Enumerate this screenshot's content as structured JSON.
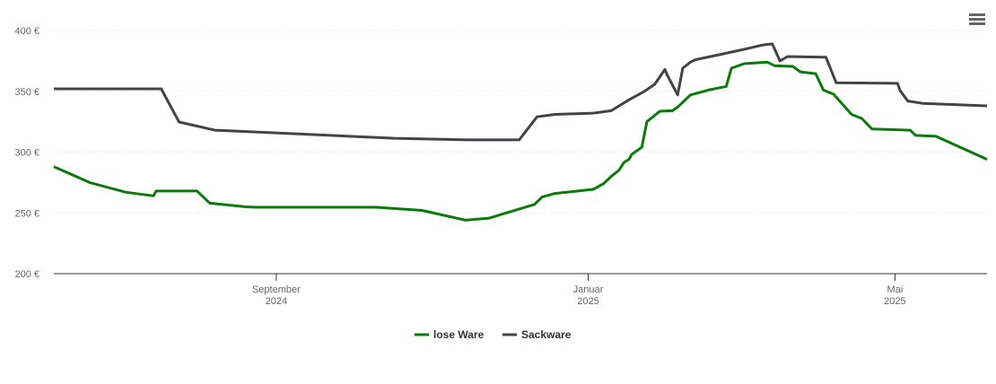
{
  "chart_data": {
    "type": "line",
    "xlim": [
      0,
      365
    ],
    "xticks": [
      {
        "value": 87,
        "label": "September 2024"
      },
      {
        "value": 209,
        "label": "Januar 2025"
      },
      {
        "value": 329,
        "label": "Mai 2025"
      }
    ],
    "ylim": [
      200,
      400
    ],
    "yticks": [
      {
        "value": 200,
        "label": "200 €"
      },
      {
        "value": 250,
        "label": "250 €"
      },
      {
        "value": 300,
        "label": "300 €"
      },
      {
        "value": 350,
        "label": "350 €"
      },
      {
        "value": 400,
        "label": "400 €"
      }
    ],
    "grid": true,
    "legend": "bottom",
    "series": [
      {
        "name": "lose Ware",
        "color": "#0b7a0b",
        "x": [
          0,
          14,
          28,
          39,
          40,
          56,
          61,
          75,
          79,
          126,
          144,
          161,
          170,
          188,
          191,
          196,
          211,
          215,
          218,
          221,
          223,
          225,
          226,
          230,
          232,
          237,
          242,
          244,
          249,
          256,
          263,
          265,
          270,
          279,
          282,
          289,
          292,
          298,
          301,
          305,
          312,
          316,
          320,
          335,
          337,
          345,
          365
        ],
        "values": [
          288,
          275,
          267,
          264,
          268,
          268,
          258,
          255,
          254.6,
          254.6,
          252,
          244,
          245.5,
          257,
          263,
          266,
          269.4,
          274,
          280,
          285,
          291.5,
          294,
          298,
          304,
          325,
          333.6,
          334,
          337,
          347,
          351,
          354,
          369,
          372.7,
          374,
          371,
          370.5,
          366,
          364.5,
          351,
          347.6,
          331,
          327.7,
          319,
          318,
          313.7,
          313,
          294
        ]
      },
      {
        "name": "Sackware",
        "color": "#434348",
        "x": [
          0,
          42,
          49,
          63,
          84,
          133,
          161,
          182,
          189,
          196,
          211,
          218,
          225,
          231,
          235,
          239,
          240,
          244,
          246,
          249,
          251,
          260,
          270,
          277,
          281,
          284,
          287,
          302,
          306,
          330,
          331,
          334,
          340,
          365
        ],
        "values": [
          352,
          352,
          324.7,
          318,
          316,
          311.4,
          310,
          310,
          329,
          331,
          332,
          334,
          343,
          350,
          355.7,
          368,
          363,
          347,
          369,
          374,
          376,
          380,
          384.5,
          388,
          389,
          375,
          378.6,
          378,
          357,
          356.5,
          350.6,
          342,
          340,
          338
        ]
      }
    ]
  }
}
